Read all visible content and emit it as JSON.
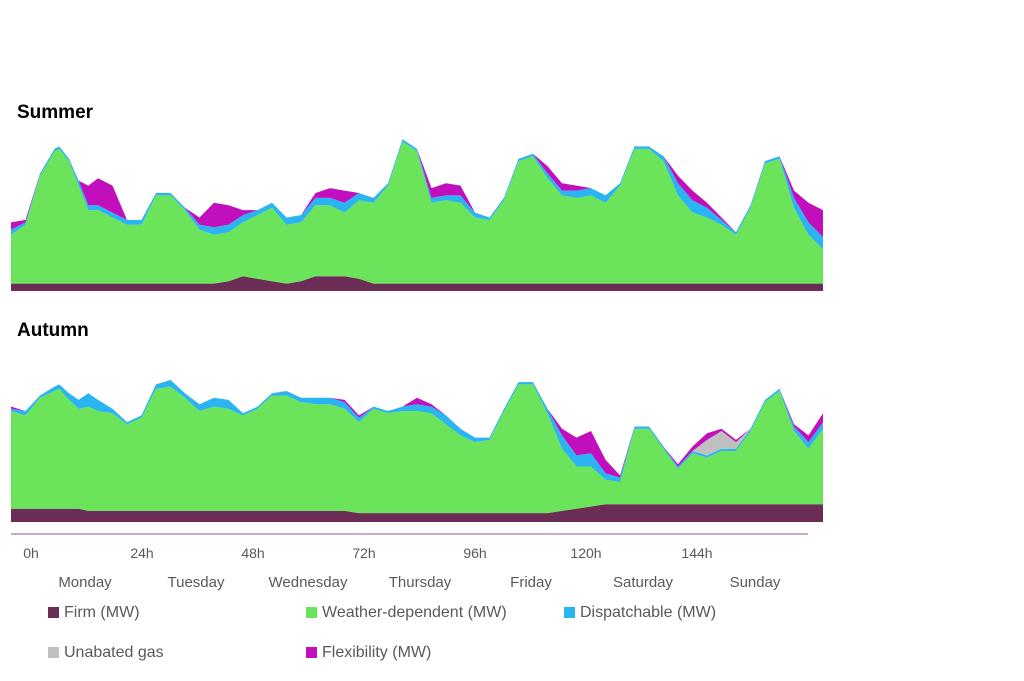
{
  "chart_data": {
    "type": "area",
    "stacked": true,
    "x_unit": "hours",
    "xlim": [
      0,
      168
    ],
    "x_ticks": [
      {
        "value": 0,
        "label": "0h"
      },
      {
        "value": 24,
        "label": "24h"
      },
      {
        "value": 48,
        "label": "48h"
      },
      {
        "value": 72,
        "label": "72h"
      },
      {
        "value": 96,
        "label": "96h"
      },
      {
        "value": 120,
        "label": "120h"
      },
      {
        "value": 144,
        "label": "144h"
      }
    ],
    "days": [
      "Monday",
      "Tuesday",
      "Wednesday",
      "Thursday",
      "Friday",
      "Saturday",
      "Sunday"
    ],
    "legend_placement": "bottom",
    "series_meta": [
      {
        "key": "firm",
        "name": "Firm (MW)",
        "color": "#6b2c55"
      },
      {
        "key": "weather",
        "name": "Weather-dependent (MW)",
        "color": "#6be35a"
      },
      {
        "key": "dispatchable",
        "name": "Dispatchable (MW)",
        "color": "#2bb4f2"
      },
      {
        "key": "gas",
        "name": "Unabated gas",
        "color": "#c0c0c0"
      },
      {
        "key": "flex",
        "name": "Flexibility (MW)",
        "color": "#c20fbe"
      }
    ],
    "panels": [
      {
        "title": "Summer",
        "x": [
          0,
          3,
          6,
          9,
          10,
          12,
          14,
          16,
          18,
          21,
          24,
          27,
          30,
          33,
          36,
          39,
          42,
          45,
          48,
          51,
          54,
          57,
          60,
          63,
          66,
          69,
          72,
          75,
          78,
          81,
          84,
          87,
          90,
          93,
          96,
          99,
          102,
          105,
          108,
          111,
          114,
          117,
          120,
          123,
          126,
          129,
          132,
          135,
          138,
          141,
          144,
          147,
          150,
          153,
          156,
          159,
          162,
          165,
          168
        ],
        "firm": [
          3,
          3,
          3,
          3,
          3,
          3,
          3,
          3,
          3,
          3,
          3,
          3,
          3,
          3,
          3,
          3,
          3,
          4,
          6,
          5,
          4,
          3,
          4,
          6,
          6,
          6,
          5,
          3,
          3,
          3,
          3,
          3,
          3,
          3,
          3,
          3,
          3,
          3,
          3,
          3,
          3,
          3,
          3,
          3,
          3,
          3,
          3,
          3,
          3,
          3,
          3,
          3,
          3,
          3,
          3,
          3,
          3,
          3,
          3
        ],
        "weather": [
          20,
          24,
          44,
          54,
          55,
          50,
          40,
          30,
          30,
          27,
          24,
          24,
          36,
          36,
          30,
          22,
          20,
          20,
          22,
          26,
          30,
          24,
          24,
          29,
          29,
          26,
          32,
          33,
          40,
          58,
          54,
          33,
          34,
          33,
          27,
          26,
          34,
          50,
          52,
          43,
          36,
          35,
          36,
          33,
          40,
          55,
          55,
          50,
          36,
          29,
          27,
          24,
          20,
          31,
          49,
          51,
          31,
          20,
          14
        ],
        "dispatchable": [
          2,
          1,
          1,
          1,
          1,
          1,
          2,
          2,
          2,
          2,
          2,
          2,
          1,
          1,
          1,
          2,
          3,
          3,
          3,
          2,
          2,
          3,
          3,
          3,
          3,
          4,
          3,
          2,
          1,
          1,
          1,
          2,
          2,
          3,
          2,
          1,
          1,
          1,
          1,
          2,
          2,
          3,
          3,
          3,
          1,
          1,
          1,
          2,
          5,
          5,
          4,
          2,
          1,
          1,
          1,
          1,
          4,
          5,
          5
        ],
        "gas": [
          0,
          0,
          0,
          0,
          0,
          0,
          0,
          0,
          0,
          0,
          0,
          0,
          0,
          0,
          0,
          0,
          0,
          0,
          0,
          0,
          0,
          0,
          0,
          0,
          0,
          0,
          0,
          0,
          0,
          0,
          0,
          0,
          0,
          0,
          0,
          0,
          0,
          0,
          0,
          0,
          0,
          0,
          0,
          0,
          0,
          0,
          0,
          0,
          0,
          0,
          0,
          0,
          0,
          0,
          0,
          0,
          0,
          0,
          0
        ],
        "flex": [
          3,
          1,
          0,
          0,
          0,
          0,
          0,
          8,
          11,
          11,
          0,
          0,
          0,
          0,
          0,
          3,
          10,
          8,
          2,
          0,
          0,
          0,
          0,
          2,
          4,
          5,
          0,
          0,
          0,
          0,
          0,
          4,
          5,
          4,
          0,
          0,
          0,
          0,
          0,
          3,
          3,
          2,
          0,
          0,
          0,
          0,
          0,
          0,
          3,
          4,
          2,
          1,
          0,
          0,
          0,
          0,
          3,
          8,
          11
        ]
      },
      {
        "title": "Autumn",
        "x": [
          0,
          3,
          6,
          9,
          10,
          12,
          14,
          16,
          18,
          21,
          24,
          27,
          30,
          33,
          36,
          39,
          42,
          45,
          48,
          51,
          54,
          57,
          60,
          63,
          66,
          69,
          72,
          75,
          78,
          81,
          84,
          87,
          90,
          93,
          96,
          99,
          102,
          105,
          108,
          111,
          114,
          117,
          120,
          123,
          126,
          129,
          132,
          135,
          138,
          141,
          144,
          147,
          150,
          153,
          156,
          159,
          162,
          165,
          168
        ],
        "firm": [
          6,
          6,
          6,
          6,
          6,
          6,
          6,
          5,
          5,
          5,
          5,
          5,
          5,
          5,
          5,
          5,
          5,
          5,
          5,
          5,
          5,
          5,
          5,
          5,
          5,
          5,
          4,
          4,
          4,
          4,
          4,
          4,
          4,
          4,
          4,
          4,
          4,
          4,
          4,
          4,
          5,
          6,
          7,
          8,
          8,
          8,
          8,
          8,
          8,
          8,
          8,
          8,
          8,
          8,
          8,
          8,
          8,
          8,
          8
        ],
        "weather": [
          44,
          42,
          50,
          53,
          54,
          49,
          45,
          47,
          45,
          44,
          39,
          42,
          55,
          56,
          51,
          45,
          47,
          46,
          43,
          46,
          52,
          52,
          49,
          48,
          48,
          46,
          41,
          47,
          45,
          46,
          46,
          45,
          40,
          35,
          32,
          33,
          46,
          58,
          58,
          45,
          28,
          19,
          18,
          11,
          10,
          34,
          34,
          25,
          16,
          23,
          21,
          24,
          24,
          33,
          46,
          51,
          33,
          25,
          34
        ],
        "dispatchable": [
          1,
          2,
          1,
          2,
          2,
          3,
          4,
          6,
          5,
          2,
          1,
          1,
          2,
          3,
          2,
          3,
          4,
          4,
          1,
          1,
          1,
          2,
          2,
          3,
          3,
          3,
          2,
          1,
          1,
          2,
          3,
          3,
          4,
          3,
          2,
          1,
          1,
          1,
          1,
          2,
          6,
          5,
          6,
          3,
          2,
          1,
          1,
          1,
          1,
          1,
          1,
          1,
          1,
          1,
          1,
          1,
          2,
          3,
          3
        ],
        "gas": [
          0,
          0,
          0,
          0,
          0,
          0,
          0,
          0,
          0,
          0,
          0,
          0,
          0,
          0,
          0,
          0,
          0,
          0,
          0,
          0,
          0,
          0,
          0,
          0,
          0,
          0,
          0,
          0,
          0,
          0,
          0,
          0,
          0,
          0,
          0,
          0,
          0,
          0,
          0,
          0,
          0,
          0,
          0,
          0,
          0,
          0,
          0,
          0,
          0,
          0,
          7,
          8,
          3,
          0,
          0,
          0,
          0,
          0,
          0
        ],
        "flex": [
          1,
          0,
          0,
          0,
          0,
          0,
          0,
          0,
          0,
          0,
          0,
          0,
          0,
          0,
          0,
          0,
          0,
          0,
          0,
          0,
          0,
          0,
          0,
          0,
          0,
          1,
          1,
          0,
          0,
          0,
          3,
          1,
          0,
          0,
          0,
          0,
          0,
          0,
          0,
          0,
          3,
          8,
          10,
          6,
          1,
          0,
          0,
          0,
          1,
          2,
          3,
          1,
          1,
          0,
          0,
          0,
          1,
          3,
          4
        ]
      }
    ]
  }
}
